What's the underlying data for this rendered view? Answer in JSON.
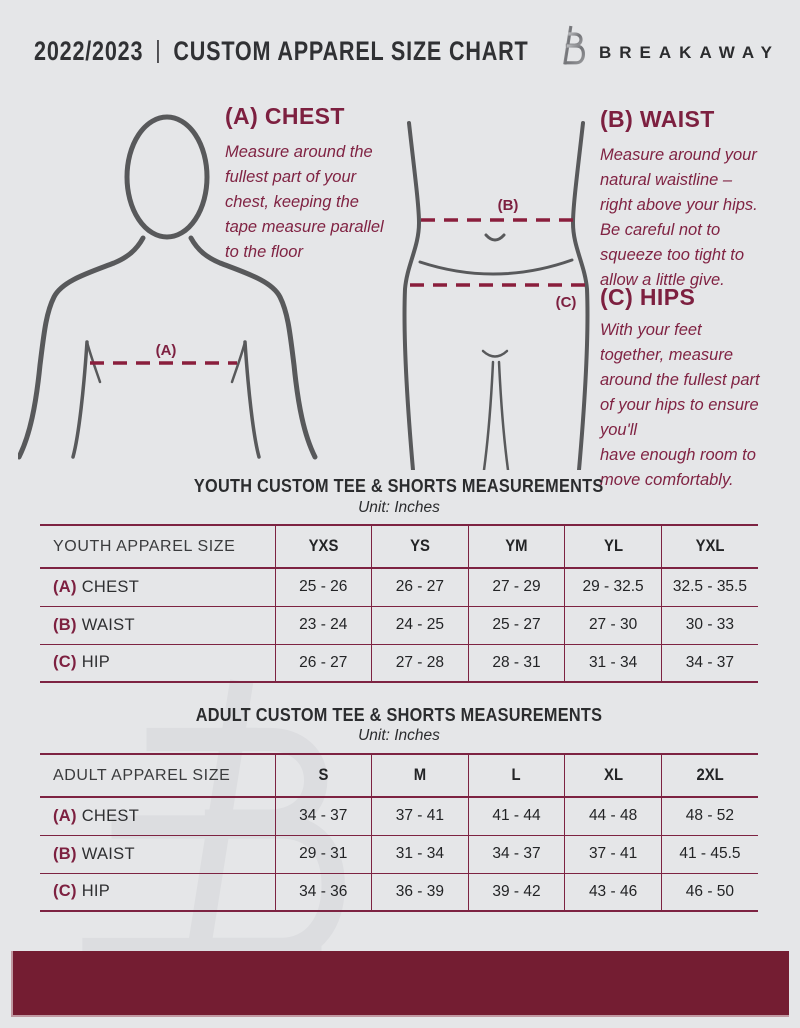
{
  "colors": {
    "background": "#e5e6e8",
    "maroon_text": "#7d2040",
    "dash_line": "#8a1e3c",
    "table_line": "#7d2342",
    "footer_bar": "#741d32",
    "figure_gray": "#58595b",
    "watermark_gray": "#dcdde0"
  },
  "header": {
    "year": "2022/2023",
    "divider": "|",
    "title": "CUSTOM APPAREL SIZE CHART",
    "brand": "BREAKAWAY",
    "logo": "breakaway-b-monogram"
  },
  "guide": {
    "chest": {
      "heading": "(A) CHEST",
      "marker": "(A)",
      "description": "Measure around the\nfullest part of your\nchest, keeping the\ntape measure parallel\nto the floor"
    },
    "waist": {
      "heading": "(B) WAIST",
      "marker": "(B)",
      "description": "Measure around your\nnatural waistline –\nright above your hips.\nBe careful not to\nsqueeze too tight to\nallow a little give."
    },
    "hips": {
      "heading": "(C) HIPS",
      "marker": "(C)",
      "description": "With your feet\ntogether, measure\naround the fullest part\nof your hips to ensure\nyou'll\nhave enough room to\nmove comfortably."
    }
  },
  "youth": {
    "title": "YOUTH CUSTOM TEE & SHORTS MEASUREMENTS",
    "unit": "Unit: Inches",
    "size_column_label": "YOUTH APPAREL SIZE",
    "sizes": [
      "YXS",
      "YS",
      "YM",
      "YL",
      "YXL"
    ],
    "rows": [
      {
        "prefix": "(A)",
        "label": "CHEST",
        "values": [
          "25 - 26",
          "26 - 27",
          "27 - 29",
          "29 - 32.5",
          "32.5 - 35.5"
        ]
      },
      {
        "prefix": "(B)",
        "label": "WAIST",
        "values": [
          "23 - 24",
          "24 - 25",
          "25 - 27",
          "27 - 30",
          "30 - 33"
        ]
      },
      {
        "prefix": "(C)",
        "label": "HIP",
        "values": [
          "26 - 27",
          "27 - 28",
          "28 - 31",
          "31 - 34",
          "34 - 37"
        ]
      }
    ]
  },
  "adult": {
    "title": "ADULT CUSTOM TEE & SHORTS MEASUREMENTS",
    "unit": "Unit: Inches",
    "size_column_label": "ADULT APPAREL SIZE",
    "sizes": [
      "S",
      "M",
      "L",
      "XL",
      "2XL"
    ],
    "rows": [
      {
        "prefix": "(A)",
        "label": "CHEST",
        "values": [
          "34 - 37",
          "37 - 41",
          "41 - 44",
          "44 - 48",
          "48 - 52"
        ]
      },
      {
        "prefix": "(B)",
        "label": "WAIST",
        "values": [
          "29 - 31",
          "31 - 34",
          "34 - 37",
          "37 - 41",
          "41 - 45.5"
        ]
      },
      {
        "prefix": "(C)",
        "label": "HIP",
        "values": [
          "34 - 36",
          "36 - 39",
          "39 - 42",
          "43 - 46",
          "46 - 50"
        ]
      }
    ]
  }
}
